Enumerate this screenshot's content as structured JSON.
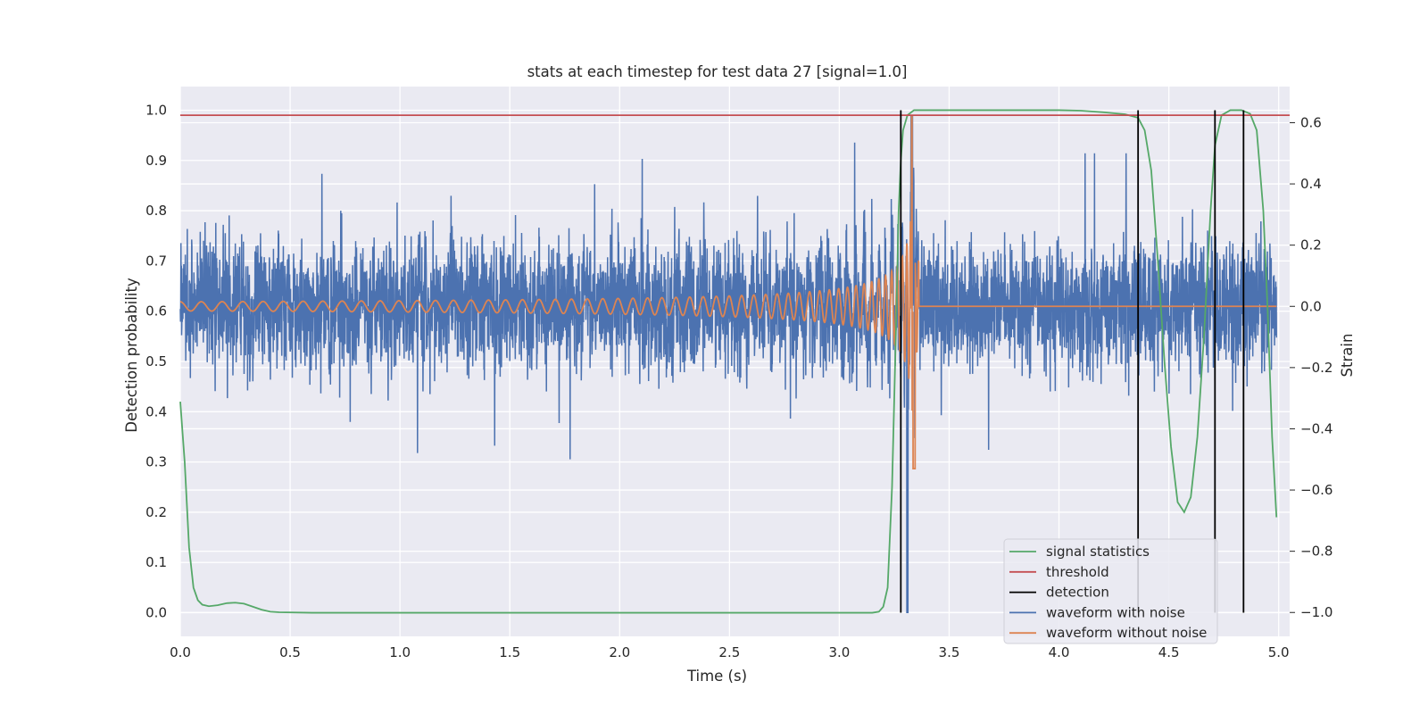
{
  "chart_data": {
    "type": "line",
    "title": "stats at each timestep for test data 27 [signal=1.0]",
    "xlabel": "Time (s)",
    "ylabel_left": "Detection probability",
    "ylabel_right": "Strain",
    "xlim": [
      0.0,
      5.05
    ],
    "ylim_left": [
      -0.047,
      1.047
    ],
    "ylim_right": [
      -1.078,
      0.718
    ],
    "x_ticks": [
      "0.0",
      "0.5",
      "1.0",
      "1.5",
      "2.0",
      "2.5",
      "3.0",
      "3.5",
      "4.0",
      "4.5",
      "5.0"
    ],
    "y_left_ticks": [
      "0.0",
      "0.1",
      "0.2",
      "0.3",
      "0.4",
      "0.5",
      "0.6",
      "0.7",
      "0.8",
      "0.9",
      "1.0"
    ],
    "y_right_ticks": [
      "−1.0",
      "−0.8",
      "−0.6",
      "−0.4",
      "−0.2",
      "0.0",
      "0.2",
      "0.4",
      "0.6"
    ],
    "grid": true,
    "legend_position": "lower-right",
    "series": [
      {
        "name": "signal statistics",
        "axis": "left",
        "color": "#55a868",
        "points": [
          [
            0.0,
            0.42
          ],
          [
            0.02,
            0.3
          ],
          [
            0.04,
            0.13
          ],
          [
            0.06,
            0.05
          ],
          [
            0.08,
            0.025
          ],
          [
            0.1,
            0.016
          ],
          [
            0.13,
            0.013
          ],
          [
            0.17,
            0.015
          ],
          [
            0.21,
            0.019
          ],
          [
            0.25,
            0.02
          ],
          [
            0.29,
            0.018
          ],
          [
            0.33,
            0.012
          ],
          [
            0.37,
            0.006
          ],
          [
            0.41,
            0.002
          ],
          [
            0.45,
            0.001
          ],
          [
            0.6,
            0.0
          ],
          [
            1.0,
            0.0
          ],
          [
            2.0,
            0.0
          ],
          [
            3.0,
            0.0
          ],
          [
            3.15,
            0.0
          ],
          [
            3.18,
            0.002
          ],
          [
            3.2,
            0.012
          ],
          [
            3.22,
            0.05
          ],
          [
            3.24,
            0.25
          ],
          [
            3.26,
            0.6
          ],
          [
            3.27,
            0.8
          ],
          [
            3.28,
            0.9
          ],
          [
            3.29,
            0.96
          ],
          [
            3.31,
            0.99
          ],
          [
            3.34,
            1.0
          ],
          [
            3.5,
            1.0
          ],
          [
            4.0,
            1.0
          ],
          [
            4.1,
            0.999
          ],
          [
            4.2,
            0.996
          ],
          [
            4.3,
            0.992
          ],
          [
            4.36,
            0.985
          ],
          [
            4.39,
            0.96
          ],
          [
            4.42,
            0.88
          ],
          [
            4.45,
            0.7
          ],
          [
            4.48,
            0.5
          ],
          [
            4.51,
            0.33
          ],
          [
            4.54,
            0.22
          ],
          [
            4.57,
            0.2
          ],
          [
            4.6,
            0.23
          ],
          [
            4.63,
            0.35
          ],
          [
            4.66,
            0.55
          ],
          [
            4.69,
            0.8
          ],
          [
            4.71,
            0.93
          ],
          [
            4.74,
            0.99
          ],
          [
            4.78,
            1.0
          ],
          [
            4.83,
            1.0
          ],
          [
            4.87,
            0.993
          ],
          [
            4.9,
            0.96
          ],
          [
            4.93,
            0.8
          ],
          [
            4.95,
            0.6
          ],
          [
            4.97,
            0.35
          ],
          [
            4.99,
            0.19
          ]
        ]
      },
      {
        "name": "threshold",
        "axis": "left",
        "color": "#c44e52",
        "y": 0.99
      },
      {
        "name": "detection",
        "axis": "left",
        "color": "#000000",
        "x_values": [
          3.28,
          4.36,
          4.71,
          4.84
        ],
        "y_range": [
          0.0,
          1.0
        ]
      },
      {
        "name": "waveform with noise",
        "axis": "right",
        "color": "#4c72b0",
        "description_points": "random noise, std ~0.1 strain, spikes to ±0.5"
      },
      {
        "name": "waveform without noise",
        "axis": "right",
        "color": "#dd8452",
        "chirp_start_amplitude": 0.015,
        "merger_time": 3.35,
        "merger_peak": 0.62,
        "merger_min": -0.53
      }
    ]
  }
}
